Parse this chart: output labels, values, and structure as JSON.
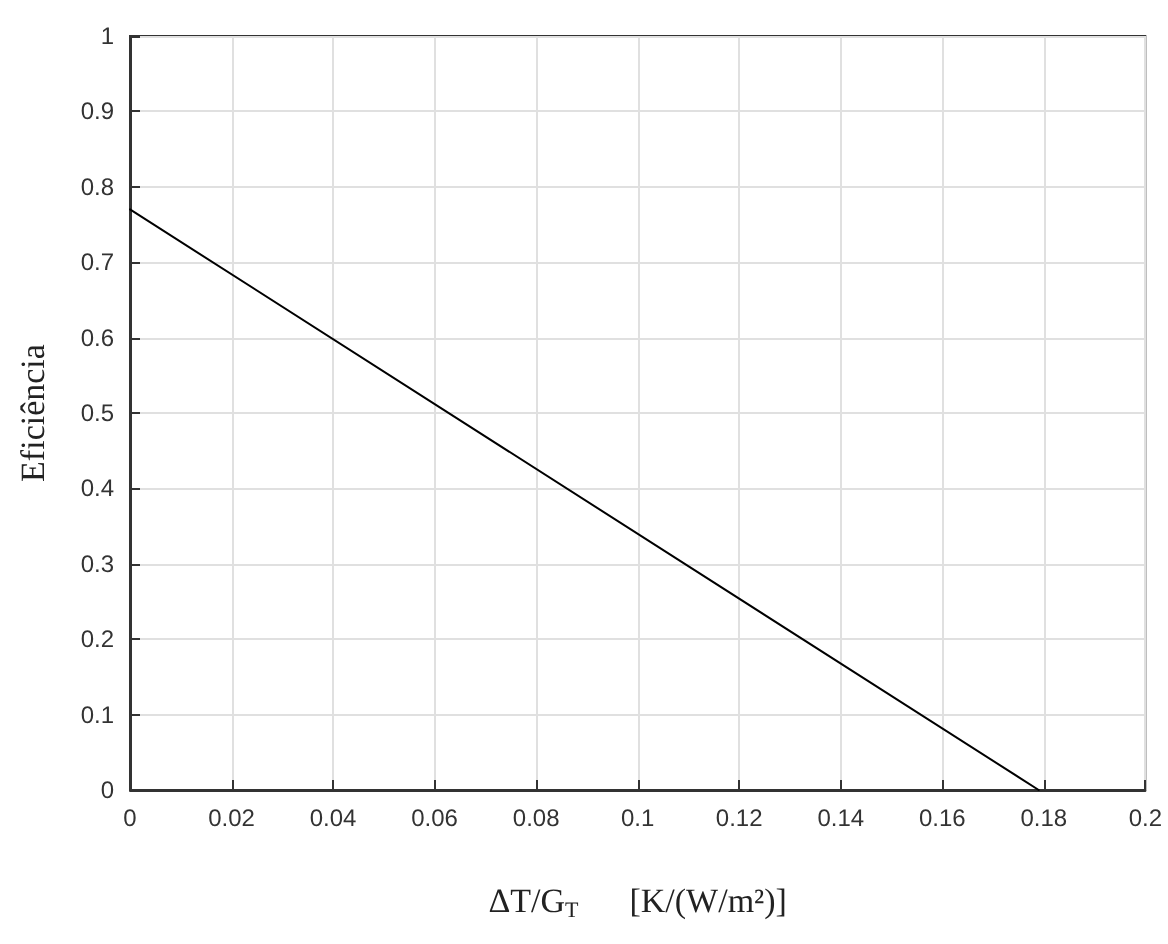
{
  "chart_data": {
    "type": "line",
    "xlabel": "ΔT/G$_{T}$      [K/(W/m²)]",
    "ylabel": "Eficiência",
    "x": [
      0,
      0.179
    ],
    "series": [
      {
        "color": "#000000",
        "values": [
          0.77,
          0
        ]
      }
    ],
    "xlim": [
      0,
      0.2
    ],
    "xticks": [
      0,
      0.02,
      0.04,
      0.06,
      0.08,
      0.1,
      0.12,
      0.14,
      0.16,
      0.18,
      0.2
    ],
    "ylim": [
      0,
      1
    ],
    "yticks": [
      0,
      0.1,
      0.2,
      0.3,
      0.4,
      0.5,
      0.6,
      0.7,
      0.8,
      0.9,
      1
    ],
    "grid": true,
    "marker": "none",
    "line_style": "solid"
  }
}
